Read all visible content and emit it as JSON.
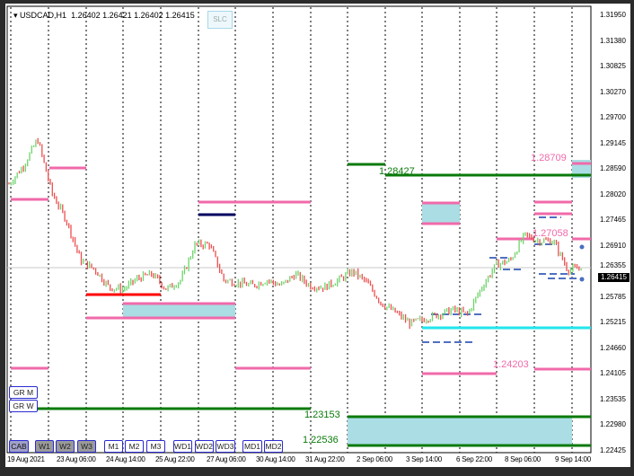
{
  "header": {
    "symbol": "USDCAD,H1",
    "quote": "1.26402 1.26421 1.26402 1.26415",
    "slc_label": "SLC"
  },
  "left_buttons": [
    "GR M",
    "GR W"
  ],
  "bottom_buttons": [
    "CAB",
    "W1",
    "W2",
    "W3",
    "M1",
    "M2",
    "M3",
    "WD1",
    "WD2",
    "WD3",
    "MD1",
    "MD2"
  ],
  "price_axis": [
    "1.31950",
    "1.31380",
    "1.30825",
    "1.30270",
    "1.29700",
    "1.29145",
    "1.28590",
    "1.28020",
    "1.27465",
    "1.26910",
    "1.26355",
    "1.25785",
    "1.25215",
    "1.24660",
    "1.24105",
    "1.23535",
    "1.22980",
    "1.22425"
  ],
  "current_price": "1.26415",
  "time_axis": [
    "19 Aug 2021",
    "23 Aug 06:00",
    "24 Aug 14:00",
    "25 Aug 22:00",
    "27 Aug 06:00",
    "30 Aug 14:00",
    "31 Aug 22:00",
    "2 Sep 06:00",
    "3 Sep 14:00",
    "6 Sep 22:00",
    "8 Sep 06:00",
    "9 Sep 14:00"
  ],
  "level_labels": {
    "l28709": "1.28709",
    "l28427": "1.28427",
    "l27058": "1.27058",
    "l24203": "1.24203",
    "l23153": "1.23153",
    "l22536": "1.22536"
  },
  "colors": {
    "up": "#6fd36a",
    "down": "#ec4f4f",
    "pink": "#f06aaa",
    "green": "#0a7a0a",
    "cyan": "#22e6ec",
    "zone": "#aadde4",
    "navy": "#000060",
    "red": "#ff0000"
  },
  "chart_data": {
    "type": "candlestick",
    "symbol": "USDCAD",
    "timeframe": "H1",
    "ylim": [
      1.22425,
      1.3195
    ],
    "approx_closes": [
      1.2826,
      1.2865,
      1.2924,
      1.2806,
      1.2747,
      1.2659,
      1.2639,
      1.26,
      1.2596,
      1.262,
      1.2629,
      1.2596,
      1.2616,
      1.2694,
      1.2694,
      1.2616,
      1.261,
      1.2604,
      1.2616,
      1.2604,
      1.2629,
      1.2604,
      1.26,
      1.2616,
      1.2635,
      1.261,
      1.2565,
      1.2545,
      1.2521,
      1.2531,
      1.2541,
      1.2551,
      1.2541,
      1.26,
      1.2649,
      1.2659,
      1.2714,
      1.2702,
      1.2702,
      1.2639,
      1.26415
    ]
  }
}
